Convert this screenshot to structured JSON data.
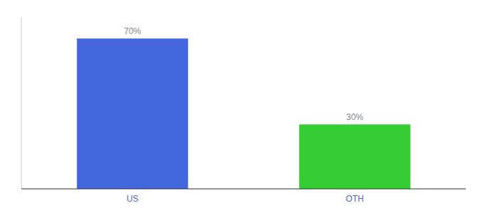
{
  "chart_data": {
    "type": "bar",
    "categories": [
      "US",
      "OTH"
    ],
    "values": [
      70,
      30
    ],
    "value_labels": [
      "70%",
      "30%"
    ],
    "colors": [
      "#4466dd",
      "#33cc33"
    ],
    "ylim": [
      0,
      80
    ],
    "data_labels": true,
    "tick_labels": "x",
    "grid": false
  }
}
